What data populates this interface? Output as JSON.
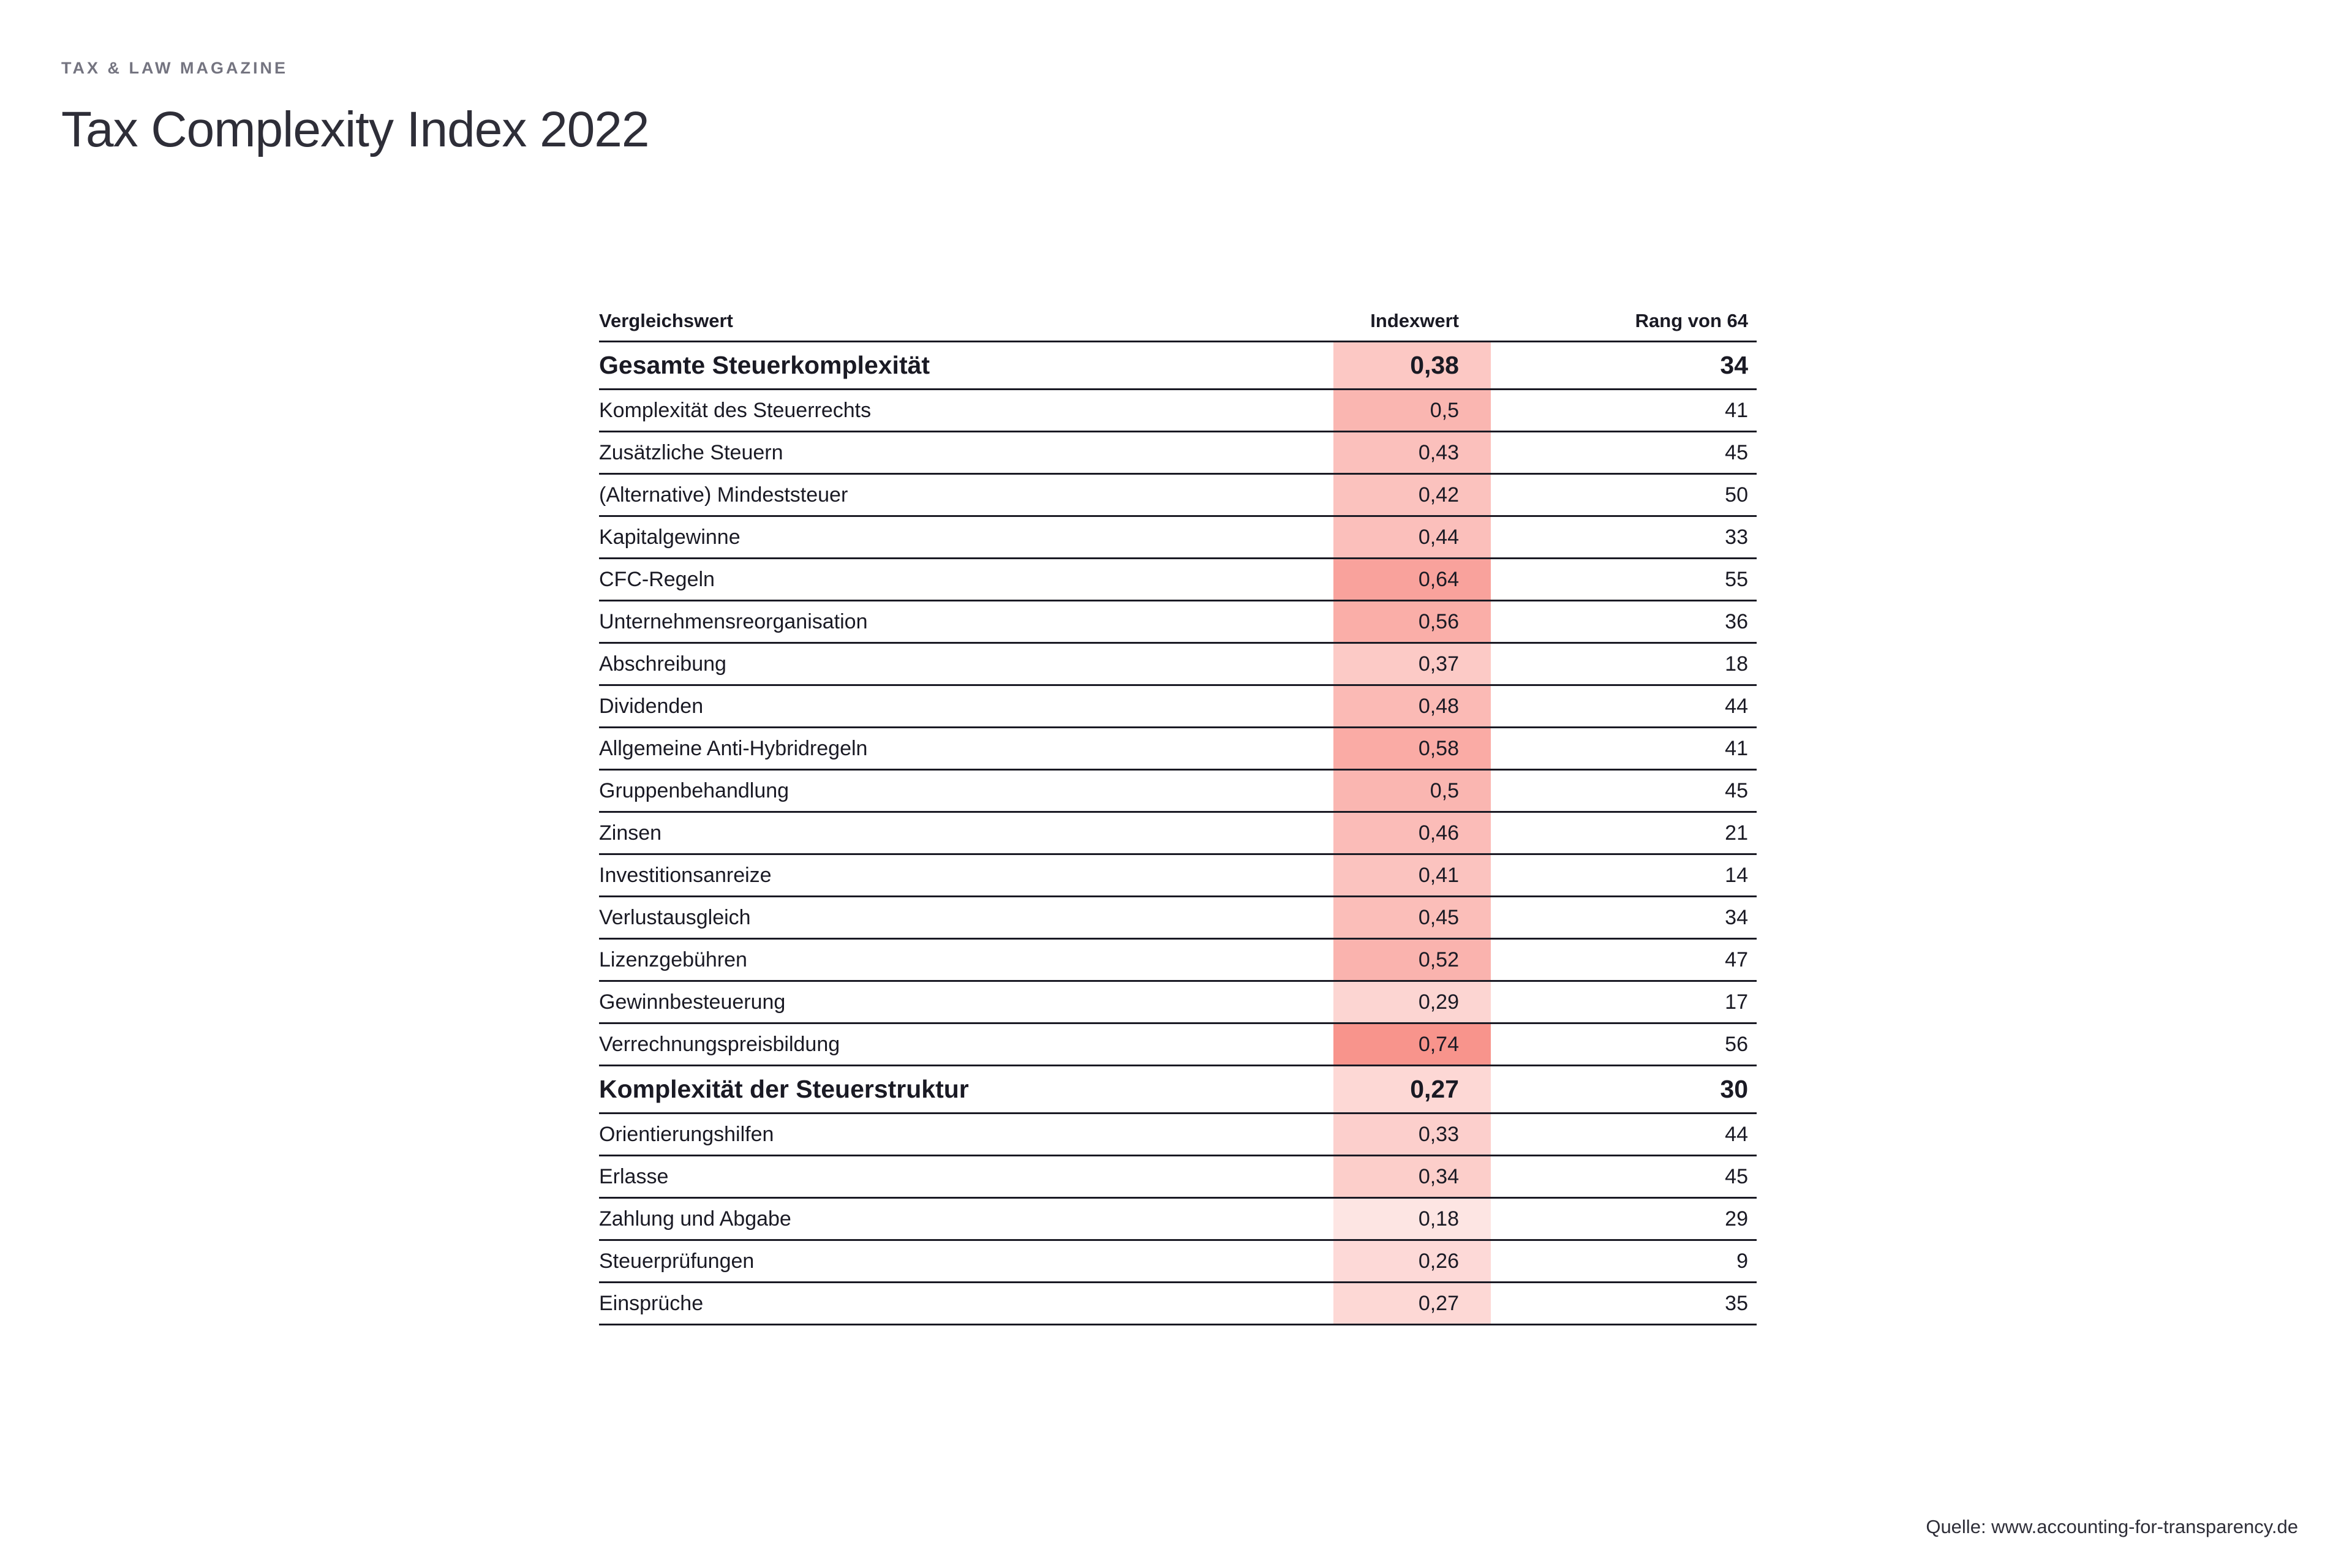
{
  "header": {
    "eyebrow": "TAX & LAW MAGAZINE",
    "title": "Tax Complexity Index 2022"
  },
  "chart_data": {
    "type": "table",
    "title": "Tax Complexity Index 2022",
    "columns": [
      "Vergleichswert",
      "Indexwert",
      "Rang von 64"
    ],
    "value_format": "decimal-comma",
    "rank_scale_max": 64,
    "rows": [
      {
        "label": "Gesamte Steuerkomplexität",
        "index": "0,38",
        "index_num": 0.38,
        "rank": "34",
        "bold": true
      },
      {
        "label": "Komplexität des Steuerrechts",
        "index": "0,5",
        "index_num": 0.5,
        "rank": "41",
        "bold": false
      },
      {
        "label": "Zusätzliche Steuern",
        "index": "0,43",
        "index_num": 0.43,
        "rank": "45",
        "bold": false
      },
      {
        "label": "(Alternative) Mindeststeuer",
        "index": "0,42",
        "index_num": 0.42,
        "rank": "50",
        "bold": false
      },
      {
        "label": "Kapitalgewinne",
        "index": "0,44",
        "index_num": 0.44,
        "rank": "33",
        "bold": false
      },
      {
        "label": "CFC-Regeln",
        "index": "0,64",
        "index_num": 0.64,
        "rank": "55",
        "bold": false
      },
      {
        "label": "Unternehmensreorganisation",
        "index": "0,56",
        "index_num": 0.56,
        "rank": "36",
        "bold": false
      },
      {
        "label": "Abschreibung",
        "index": "0,37",
        "index_num": 0.37,
        "rank": "18",
        "bold": false
      },
      {
        "label": "Dividenden",
        "index": "0,48",
        "index_num": 0.48,
        "rank": "44",
        "bold": false
      },
      {
        "label": "Allgemeine Anti-Hybridregeln",
        "index": "0,58",
        "index_num": 0.58,
        "rank": "41",
        "bold": false
      },
      {
        "label": "Gruppenbehandlung",
        "index": "0,5",
        "index_num": 0.5,
        "rank": "45",
        "bold": false
      },
      {
        "label": "Zinsen",
        "index": "0,46",
        "index_num": 0.46,
        "rank": "21",
        "bold": false
      },
      {
        "label": "Investitionsanreize",
        "index": "0,41",
        "index_num": 0.41,
        "rank": "14",
        "bold": false
      },
      {
        "label": "Verlustausgleich",
        "index": "0,45",
        "index_num": 0.45,
        "rank": "34",
        "bold": false
      },
      {
        "label": "Lizenzgebühren",
        "index": "0,52",
        "index_num": 0.52,
        "rank": "47",
        "bold": false
      },
      {
        "label": "Gewinnbesteuerung",
        "index": "0,29",
        "index_num": 0.29,
        "rank": "17",
        "bold": false
      },
      {
        "label": "Verrechnungspreisbildung",
        "index": "0,74",
        "index_num": 0.74,
        "rank": "56",
        "bold": false
      },
      {
        "label": "Komplexität der Steuerstruktur",
        "index": "0,27",
        "index_num": 0.27,
        "rank": "30",
        "bold": true
      },
      {
        "label": "Orientierungshilfen",
        "index": "0,33",
        "index_num": 0.33,
        "rank": "44",
        "bold": false
      },
      {
        "label": "Erlasse",
        "index": "0,34",
        "index_num": 0.34,
        "rank": "45",
        "bold": false
      },
      {
        "label": "Zahlung und Abgabe",
        "index": "0,18",
        "index_num": 0.18,
        "rank": "29",
        "bold": false
      },
      {
        "label": "Steuerprüfungen",
        "index": "0,26",
        "index_num": 0.26,
        "rank": "9",
        "bold": false
      },
      {
        "label": "Einsprüche",
        "index": "0,27",
        "index_num": 0.27,
        "rank": "35",
        "bold": false
      }
    ]
  },
  "colors": {
    "accent_rgb": "246,110,100",
    "text": "#1a1a24",
    "heading": "#2e2e38",
    "eyebrow": "#747480",
    "border": "#1a1a24"
  },
  "footer": {
    "source": "Quelle: www.accounting-for-transparency.de"
  }
}
